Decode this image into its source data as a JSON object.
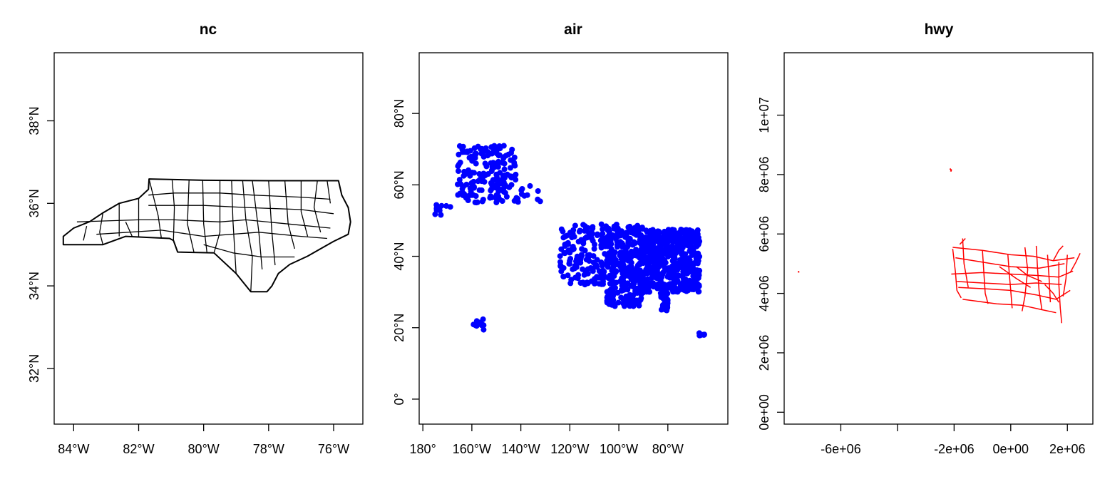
{
  "chart_data": [
    {
      "type": "map-polygons",
      "title": "nc",
      "xlabel": "",
      "ylabel": "",
      "xlim": [
        -84.6,
        -75.1
      ],
      "ylim": [
        30.65,
        39.65
      ],
      "x_ticks": [
        {
          "value": -84,
          "label": "84°W"
        },
        {
          "value": -82,
          "label": "82°W"
        },
        {
          "value": -80,
          "label": "80°W"
        },
        {
          "value": -78,
          "label": "78°W"
        },
        {
          "value": -76,
          "label": "76°W"
        }
      ],
      "y_ticks": [
        {
          "value": 32,
          "label": "32°N"
        },
        {
          "value": 34,
          "label": "34°N"
        },
        {
          "value": 36,
          "label": "36°N"
        },
        {
          "value": 38,
          "label": "38°N"
        }
      ],
      "color": "#000000",
      "outline": [
        [
          -84.32,
          35.0
        ],
        [
          -84.32,
          35.2
        ],
        [
          -84.0,
          35.4
        ],
        [
          -83.5,
          35.56
        ],
        [
          -83.1,
          35.77
        ],
        [
          -82.6,
          36.0
        ],
        [
          -82.0,
          36.12
        ],
        [
          -81.7,
          36.34
        ],
        [
          -81.68,
          36.59
        ],
        [
          -80.0,
          36.56
        ],
        [
          -78.0,
          36.55
        ],
        [
          -76.0,
          36.55
        ],
        [
          -75.85,
          36.55
        ],
        [
          -75.75,
          36.2
        ],
        [
          -75.55,
          35.9
        ],
        [
          -75.48,
          35.55
        ],
        [
          -75.55,
          35.25
        ],
        [
          -76.0,
          35.08
        ],
        [
          -76.4,
          34.9
        ],
        [
          -76.8,
          34.72
        ],
        [
          -77.35,
          34.52
        ],
        [
          -77.7,
          34.3
        ],
        [
          -77.9,
          34.0
        ],
        [
          -78.05,
          33.86
        ],
        [
          -78.55,
          33.86
        ],
        [
          -79.0,
          34.3
        ],
        [
          -79.68,
          34.8
        ],
        [
          -80.8,
          34.82
        ],
        [
          -80.93,
          35.1
        ],
        [
          -81.05,
          35.15
        ],
        [
          -82.4,
          35.2
        ],
        [
          -83.1,
          35.0
        ],
        [
          -84.32,
          35.0
        ]
      ],
      "county_lines": [
        [
          [
            -83.1,
            35.77
          ],
          [
            -83.2,
            35.3
          ],
          [
            -83.1,
            35.0
          ]
        ],
        [
          [
            -82.6,
            36.0
          ],
          [
            -82.6,
            35.2
          ]
        ],
        [
          [
            -82.0,
            36.12
          ],
          [
            -82.0,
            35.2
          ]
        ],
        [
          [
            -81.68,
            36.59
          ],
          [
            -81.4,
            35.7
          ],
          [
            -81.3,
            35.15
          ]
        ],
        [
          [
            -80.97,
            36.56
          ],
          [
            -80.9,
            35.9
          ],
          [
            -80.93,
            35.1
          ]
        ],
        [
          [
            -80.45,
            36.56
          ],
          [
            -80.5,
            35.5
          ],
          [
            -80.3,
            34.82
          ]
        ],
        [
          [
            -80.03,
            36.56
          ],
          [
            -80.0,
            35.5
          ],
          [
            -79.9,
            34.82
          ]
        ],
        [
          [
            -79.5,
            36.56
          ],
          [
            -79.5,
            35.3
          ],
          [
            -79.68,
            34.8
          ]
        ],
        [
          [
            -79.14,
            36.55
          ],
          [
            -79.1,
            35.6
          ],
          [
            -79.0,
            34.3
          ]
        ],
        [
          [
            -78.8,
            36.55
          ],
          [
            -78.7,
            35.6
          ],
          [
            -78.5,
            34.7
          ],
          [
            -78.55,
            33.86
          ]
        ],
        [
          [
            -78.5,
            36.55
          ],
          [
            -78.3,
            35.3
          ],
          [
            -78.2,
            34.4
          ]
        ],
        [
          [
            -78.0,
            36.55
          ],
          [
            -77.9,
            35.3
          ],
          [
            -77.8,
            34.5
          ]
        ],
        [
          [
            -77.5,
            36.55
          ],
          [
            -77.4,
            35.5
          ],
          [
            -77.2,
            34.9
          ]
        ],
        [
          [
            -77.0,
            36.55
          ],
          [
            -77.0,
            35.8
          ],
          [
            -76.8,
            35.2
          ]
        ],
        [
          [
            -76.5,
            36.55
          ],
          [
            -76.6,
            35.9
          ],
          [
            -76.4,
            35.3
          ]
        ],
        [
          [
            -76.2,
            36.55
          ],
          [
            -76.1,
            36.0
          ]
        ],
        [
          [
            -83.9,
            35.55
          ],
          [
            -82.0,
            35.6
          ],
          [
            -80.9,
            35.6
          ],
          [
            -79.5,
            35.55
          ],
          [
            -78.7,
            35.6
          ],
          [
            -77.4,
            35.5
          ],
          [
            -76.1,
            35.4
          ]
        ],
        [
          [
            -83.3,
            35.25
          ],
          [
            -81.3,
            35.35
          ],
          [
            -80.0,
            35.2
          ],
          [
            -78.3,
            35.3
          ],
          [
            -77.0,
            35.2
          ],
          [
            -76.2,
            35.15
          ]
        ],
        [
          [
            -81.7,
            36.2
          ],
          [
            -80.9,
            36.25
          ],
          [
            -79.5,
            36.25
          ],
          [
            -78.5,
            36.2
          ],
          [
            -77.0,
            36.15
          ],
          [
            -76.1,
            36.1
          ]
        ],
        [
          [
            -81.7,
            35.95
          ],
          [
            -80.0,
            35.95
          ],
          [
            -78.7,
            35.9
          ],
          [
            -77.0,
            35.85
          ],
          [
            -76.0,
            35.75
          ]
        ],
        [
          [
            -80.0,
            35.0
          ],
          [
            -79.1,
            34.8
          ],
          [
            -78.2,
            34.7
          ],
          [
            -77.2,
            34.7
          ]
        ],
        [
          [
            -82.4,
            35.55
          ],
          [
            -82.2,
            35.2
          ]
        ],
        [
          [
            -83.6,
            35.45
          ],
          [
            -83.7,
            35.1
          ]
        ]
      ]
    },
    {
      "type": "scatter",
      "title": "air",
      "xlabel": "",
      "ylabel": "",
      "xlim": [
        -181.5,
        -55.5
      ],
      "ylim": [
        -7,
        97
      ],
      "x_ticks": [
        {
          "value": -180,
          "label": "180°"
        },
        {
          "value": -160,
          "label": "160°W"
        },
        {
          "value": -140,
          "label": "140°W"
        },
        {
          "value": -120,
          "label": "120°W"
        },
        {
          "value": -100,
          "label": "100°W"
        },
        {
          "value": -80,
          "label": "80°W"
        }
      ],
      "y_ticks": [
        {
          "value": 0,
          "label": "0°"
        },
        {
          "value": 20,
          "label": "20°N"
        },
        {
          "value": 40,
          "label": "40°N"
        },
        {
          "value": 60,
          "label": "60°N"
        },
        {
          "value": 80,
          "label": "80°N"
        }
      ],
      "color": "#0000ff",
      "clusters": [
        {
          "name": "alaska",
          "lon": [
            -166,
            -142
          ],
          "lat": [
            55,
            71
          ],
          "n": 190
        },
        {
          "name": "alaska-panhandle",
          "lon": [
            -142,
            -131
          ],
          "lat": [
            55,
            60
          ],
          "n": 12
        },
        {
          "name": "aleutians",
          "lon": [
            -178,
            -168
          ],
          "lat": [
            51.5,
            54.5
          ],
          "n": 10
        },
        {
          "name": "hawaii",
          "lon": [
            -160,
            -155
          ],
          "lat": [
            19,
            22.5
          ],
          "n": 10
        },
        {
          "name": "puerto-rico",
          "lon": [
            -67.5,
            -65
          ],
          "lat": [
            17.8,
            18.6
          ],
          "n": 8
        },
        {
          "name": "conus-west",
          "lon": [
            -124,
            -105
          ],
          "lat": [
            32,
            49
          ],
          "n": 150
        },
        {
          "name": "conus-central",
          "lon": [
            -105,
            -90
          ],
          "lat": [
            26,
            49
          ],
          "n": 320
        },
        {
          "name": "conus-east",
          "lon": [
            -90,
            -67
          ],
          "lat": [
            30,
            47.5
          ],
          "n": 520
        },
        {
          "name": "florida",
          "lon": [
            -83,
            -80
          ],
          "lat": [
            24.5,
            30.5
          ],
          "n": 40
        }
      ]
    },
    {
      "type": "map-lines",
      "title": "hwy",
      "xlabel": "",
      "ylabel": "",
      "xlim": [
        -8000000,
        2900000
      ],
      "ylim": [
        -400000,
        12100000
      ],
      "x_ticks": [
        {
          "value": -6000000,
          "label": "-6e+06"
        },
        {
          "value": -4000000,
          "label": ""
        },
        {
          "value": -2000000,
          "label": "-2e+06"
        },
        {
          "value": 0,
          "label": "0e+00"
        },
        {
          "value": 2000000,
          "label": "2e+06"
        }
      ],
      "y_ticks": [
        {
          "value": 0,
          "label": "0e+00"
        },
        {
          "value": 2000000,
          "label": "2e+06"
        },
        {
          "value": 4000000,
          "label": "4e+06"
        },
        {
          "value": 6000000,
          "label": "6e+06"
        },
        {
          "value": 8000000,
          "label": "8e+06"
        },
        {
          "value": 10000000,
          "label": "1e+07"
        }
      ],
      "color": "#ff0000",
      "lines": [
        [
          [
            -2100000,
            4650000
          ],
          [
            -1000000,
            4700000
          ],
          [
            0,
            4650000
          ],
          [
            1000000,
            4600000
          ],
          [
            1700000,
            4550000
          ],
          [
            2200000,
            4750000
          ]
        ],
        [
          [
            -2050000,
            5550000
          ],
          [
            -1000000,
            5450000
          ],
          [
            0,
            5300000
          ],
          [
            800000,
            5250000
          ],
          [
            1500000,
            5100000
          ],
          [
            2250000,
            5200000
          ]
        ],
        [
          [
            -1850000,
            4200000
          ],
          [
            -800000,
            4150000
          ],
          [
            0,
            4100000
          ],
          [
            900000,
            3950000
          ],
          [
            1600000,
            3800000
          ],
          [
            2100000,
            4100000
          ]
        ],
        [
          [
            -1700000,
            3800000
          ],
          [
            -500000,
            3650000
          ],
          [
            400000,
            3600000
          ],
          [
            1100000,
            3450000
          ],
          [
            1600000,
            3350000
          ]
        ],
        [
          [
            -1950000,
            5200000
          ],
          [
            -1000000,
            5050000
          ],
          [
            0,
            4900000
          ],
          [
            1000000,
            4850000
          ],
          [
            1900000,
            5000000
          ]
        ],
        [
          [
            -1900000,
            4400000
          ],
          [
            -1000000,
            4350000
          ],
          [
            0,
            4300000
          ],
          [
            900000,
            4350000
          ],
          [
            1800000,
            4300000
          ]
        ],
        [
          [
            -2050000,
            5500000
          ],
          [
            -1950000,
            4700000
          ],
          [
            -1900000,
            4100000
          ],
          [
            -1750000,
            3850000
          ]
        ],
        [
          [
            -1700000,
            5850000
          ],
          [
            -1650000,
            5000000
          ],
          [
            -1500000,
            4200000
          ]
        ],
        [
          [
            -1000000,
            5450000
          ],
          [
            -950000,
            4700000
          ],
          [
            -900000,
            4000000
          ],
          [
            -800000,
            3650000
          ]
        ],
        [
          [
            -100000,
            5300000
          ],
          [
            -50000,
            4650000
          ],
          [
            0,
            4100000
          ],
          [
            50000,
            3500000
          ]
        ],
        [
          [
            500000,
            5550000
          ],
          [
            600000,
            4800000
          ],
          [
            500000,
            3900000
          ],
          [
            400000,
            3400000
          ]
        ],
        [
          [
            900000,
            5600000
          ],
          [
            950000,
            4800000
          ],
          [
            1000000,
            4100000
          ],
          [
            1100000,
            3450000
          ]
        ],
        [
          [
            1300000,
            5300000
          ],
          [
            1350000,
            4600000
          ],
          [
            1400000,
            3700000
          ]
        ],
        [
          [
            1700000,
            5050000
          ],
          [
            1700000,
            4300000
          ],
          [
            1750000,
            3500000
          ],
          [
            1800000,
            3000000
          ]
        ],
        [
          [
            2000000,
            5300000
          ],
          [
            1950000,
            4500000
          ],
          [
            1850000,
            3900000
          ]
        ],
        [
          [
            2100000,
            4700000
          ],
          [
            2300000,
            5050000
          ],
          [
            2450000,
            5350000
          ]
        ],
        [
          [
            1500000,
            5100000
          ],
          [
            1700000,
            5450000
          ],
          [
            1850000,
            5600000
          ]
        ],
        [
          [
            -1600000,
            5850000
          ],
          [
            -1700000,
            5750000
          ],
          [
            -1800000,
            5650000
          ]
        ],
        [
          [
            1200000,
            4300000
          ],
          [
            1500000,
            4000000
          ],
          [
            1700000,
            3700000
          ]
        ],
        [
          [
            200000,
            4900000
          ],
          [
            600000,
            4600000
          ],
          [
            1100000,
            4400000
          ]
        ],
        [
          [
            -400000,
            4900000
          ],
          [
            200000,
            4500000
          ],
          [
            700000,
            4200000
          ]
        ]
      ],
      "bits": [
        [
          [
            -2150000,
            8200000
          ],
          [
            -2100000,
            8150000
          ],
          [
            -2120000,
            8100000
          ]
        ],
        [
          [
            -7500000,
            4750000
          ],
          [
            -7480000,
            4700000
          ]
        ]
      ]
    }
  ]
}
